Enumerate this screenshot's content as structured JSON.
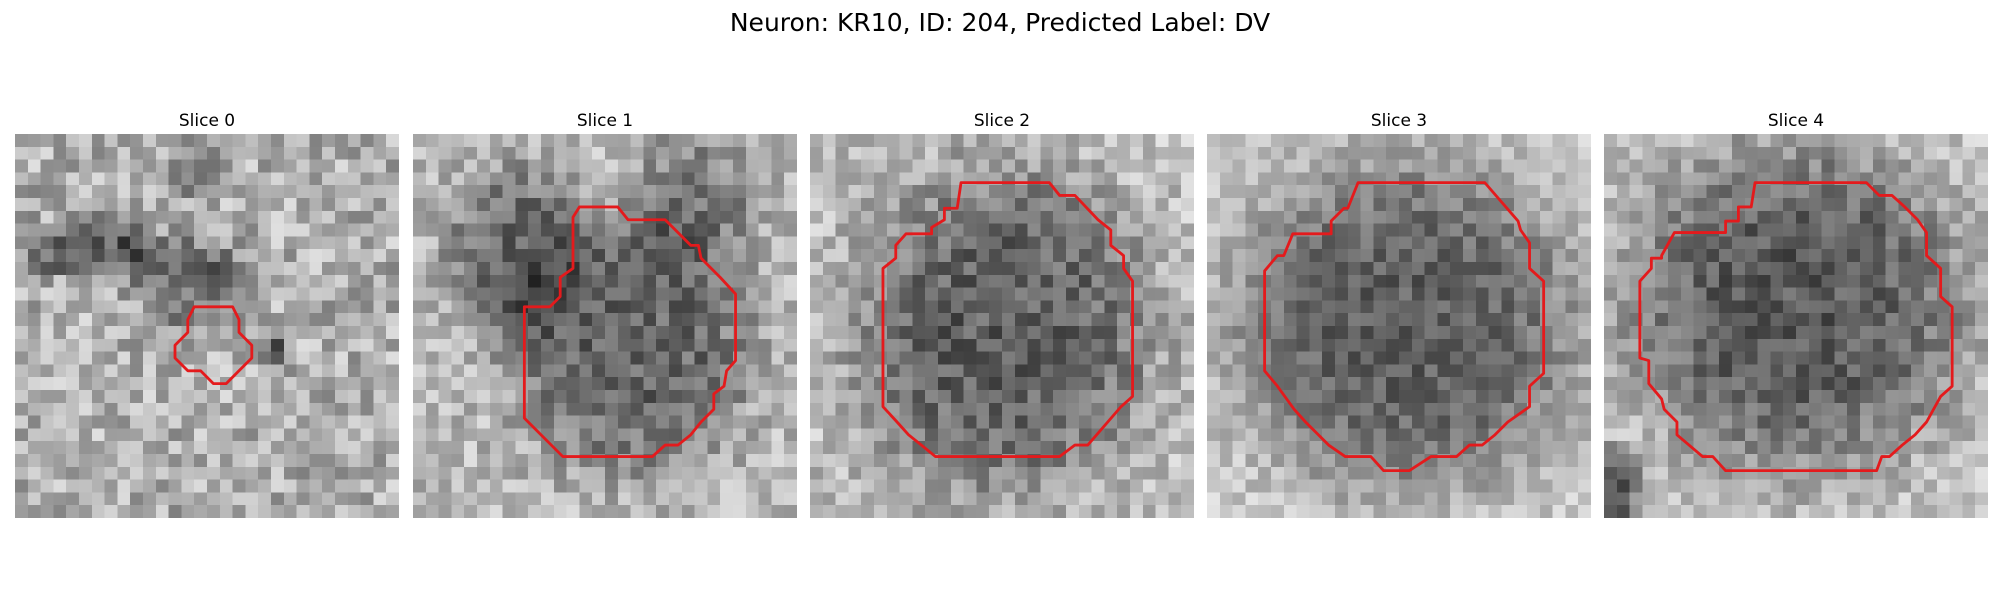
{
  "figure": {
    "title": "Neuron: KR10, ID: 204, Predicted Label: DV"
  },
  "grid_size": 30,
  "contour_color": "#e41a1c",
  "panels": [
    {
      "title": "Slice 0",
      "blobs": [
        {
          "cx": 6.0,
          "cy": 9.0,
          "rx": 5.0,
          "ry": 2.0,
          "depth": 90
        },
        {
          "cx": 14.0,
          "cy": 11.5,
          "rx": 4.0,
          "ry": 3.0,
          "depth": 70
        },
        {
          "cx": 20.0,
          "cy": 17.0,
          "rx": 1.5,
          "ry": 1.2,
          "depth": 80
        },
        {
          "cx": 14.0,
          "cy": 2.5,
          "rx": 1.5,
          "ry": 2.5,
          "depth": 50
        }
      ],
      "base": 175,
      "noise": 60,
      "seed": 11,
      "contour": [
        [
          14,
          13.5
        ],
        [
          17,
          13.5
        ],
        [
          17.5,
          14.5
        ],
        [
          17.5,
          15.5
        ],
        [
          18.5,
          16.5
        ],
        [
          18.5,
          17.5
        ],
        [
          17.5,
          18.5
        ],
        [
          16.5,
          19.5
        ],
        [
          15.5,
          19.5
        ],
        [
          14.5,
          18.5
        ],
        [
          13.5,
          18.5
        ],
        [
          12.5,
          17.5
        ],
        [
          12.5,
          16.5
        ],
        [
          13.5,
          15.5
        ],
        [
          13.5,
          14.5
        ]
      ]
    },
    {
      "title": "Slice 1",
      "blobs": [
        {
          "cx": 17.0,
          "cy": 16.5,
          "rx": 8.5,
          "ry": 9.0,
          "depth": 85
        },
        {
          "cx": 8.0,
          "cy": 9.0,
          "rx": 5.0,
          "ry": 6.0,
          "depth": 75
        },
        {
          "cx": 22.0,
          "cy": 5.0,
          "rx": 4.5,
          "ry": 5.0,
          "depth": 55
        }
      ],
      "base": 185,
      "noise": 50,
      "seed": 23,
      "contour": [
        [
          13,
          5.7
        ],
        [
          16,
          5.7
        ],
        [
          16.8,
          6.7
        ],
        [
          19.7,
          6.7
        ],
        [
          21.7,
          8.7
        ],
        [
          22.3,
          8.7
        ],
        [
          22.5,
          9.7
        ],
        [
          24,
          11.2
        ],
        [
          25.2,
          12.5
        ],
        [
          25.2,
          17.7
        ],
        [
          24.5,
          18.5
        ],
        [
          24.3,
          19.7
        ],
        [
          23.5,
          20.3
        ],
        [
          23.5,
          21.5
        ],
        [
          22.5,
          22.5
        ],
        [
          21.7,
          23.5
        ],
        [
          20.7,
          24.3
        ],
        [
          19.7,
          24.3
        ],
        [
          18.7,
          25.2
        ],
        [
          11.7,
          25.2
        ],
        [
          9,
          22.5
        ],
        [
          8.7,
          22.2
        ],
        [
          8.7,
          13.5
        ],
        [
          10.7,
          13.5
        ],
        [
          11.5,
          12.7
        ],
        [
          11.5,
          11.2
        ],
        [
          12.5,
          10.5
        ],
        [
          12.5,
          6.5
        ]
      ]
    },
    {
      "title": "Slice 2",
      "blobs": [
        {
          "cx": 15.0,
          "cy": 15.5,
          "rx": 10.5,
          "ry": 11.5,
          "depth": 95
        }
      ],
      "base": 190,
      "noise": 50,
      "seed": 37,
      "contour": [
        [
          11.8,
          3.8
        ],
        [
          18.7,
          3.8
        ],
        [
          19.5,
          4.8
        ],
        [
          20.7,
          4.8
        ],
        [
          22.5,
          6.7
        ],
        [
          23.5,
          7.5
        ],
        [
          23.5,
          8.7
        ],
        [
          24.5,
          9.5
        ],
        [
          24.5,
          10.5
        ],
        [
          25.2,
          11.5
        ],
        [
          25.2,
          20.5
        ],
        [
          24.3,
          21.3
        ],
        [
          21.7,
          24.3
        ],
        [
          20.7,
          24.3
        ],
        [
          19.5,
          25.2
        ],
        [
          9.8,
          25.2
        ],
        [
          8.7,
          24.3
        ],
        [
          7.7,
          23.5
        ],
        [
          6.8,
          22.5
        ],
        [
          5.7,
          21.3
        ],
        [
          5.7,
          10.5
        ],
        [
          6.7,
          9.7
        ],
        [
          6.7,
          8.7
        ],
        [
          7.5,
          7.8
        ],
        [
          9.5,
          7.8
        ],
        [
          9.5,
          7.3
        ],
        [
          10.5,
          6.7
        ],
        [
          10.5,
          5.8
        ],
        [
          11.5,
          5.8
        ]
      ]
    },
    {
      "title": "Slice 3",
      "blobs": [
        {
          "cx": 15.5,
          "cy": 15.0,
          "rx": 12.5,
          "ry": 12.0,
          "depth": 110
        }
      ],
      "base": 205,
      "noise": 40,
      "seed": 53,
      "contour": [
        [
          11.8,
          3.8
        ],
        [
          21.7,
          3.8
        ],
        [
          24.3,
          6.8
        ],
        [
          24.5,
          7.5
        ],
        [
          25.2,
          8.5
        ],
        [
          25.2,
          10.5
        ],
        [
          26.3,
          11.5
        ],
        [
          26.3,
          18.7
        ],
        [
          25.2,
          19.7
        ],
        [
          25.2,
          21.3
        ],
        [
          23.5,
          22.5
        ],
        [
          22.5,
          23.5
        ],
        [
          21.5,
          24.3
        ],
        [
          20.5,
          24.3
        ],
        [
          19.5,
          25.2
        ],
        [
          17.5,
          25.2
        ],
        [
          15.8,
          26.3
        ],
        [
          13.8,
          26.3
        ],
        [
          12.8,
          25.2
        ],
        [
          10.8,
          25.2
        ],
        [
          9.5,
          24.3
        ],
        [
          7.7,
          22.5
        ],
        [
          6.8,
          21.5
        ],
        [
          5.5,
          19.7
        ],
        [
          4.5,
          18.5
        ],
        [
          4.5,
          10.7
        ],
        [
          5.5,
          9.5
        ],
        [
          6,
          9.5
        ],
        [
          6.7,
          7.8
        ],
        [
          9.7,
          7.8
        ],
        [
          9.7,
          6.8
        ],
        [
          10.7,
          5.8
        ],
        [
          11,
          5.8
        ]
      ]
    },
    {
      "title": "Slice 4",
      "blobs": [
        {
          "cx": 15.0,
          "cy": 13.5,
          "rx": 12.0,
          "ry": 11.5,
          "depth": 105
        },
        {
          "cx": 0.5,
          "cy": 28.0,
          "rx": 2.0,
          "ry": 3.0,
          "depth": 120
        }
      ],
      "base": 195,
      "noise": 45,
      "seed": 71,
      "contour": [
        [
          11.8,
          3.8
        ],
        [
          20.5,
          3.8
        ],
        [
          21.5,
          4.8
        ],
        [
          22.5,
          4.8
        ],
        [
          23.5,
          5.7
        ],
        [
          24.5,
          6.7
        ],
        [
          25.2,
          7.7
        ],
        [
          25.2,
          9.5
        ],
        [
          26.3,
          10.5
        ],
        [
          26.3,
          12.7
        ],
        [
          27.2,
          13.5
        ],
        [
          27.2,
          19.7
        ],
        [
          26.3,
          20.5
        ],
        [
          25.2,
          22.5
        ],
        [
          24.3,
          23.5
        ],
        [
          23.3,
          24.3
        ],
        [
          22.3,
          25.2
        ],
        [
          21.7,
          25.2
        ],
        [
          21.3,
          26.3
        ],
        [
          9.5,
          26.3
        ],
        [
          8.5,
          25.2
        ],
        [
          7.7,
          25.2
        ],
        [
          5.7,
          23.5
        ],
        [
          5.7,
          22.5
        ],
        [
          4.7,
          21.5
        ],
        [
          4.5,
          20.7
        ],
        [
          3.5,
          19.5
        ],
        [
          3.5,
          17.7
        ],
        [
          2.8,
          17.5
        ],
        [
          2.8,
          11.5
        ],
        [
          3.7,
          10.5
        ],
        [
          3.7,
          9.7
        ],
        [
          4.5,
          9.7
        ],
        [
          4.5,
          9.5
        ],
        [
          5.5,
          7.7
        ],
        [
          9.5,
          7.7
        ],
        [
          9.5,
          6.8
        ],
        [
          10.5,
          6.8
        ],
        [
          10.5,
          5.7
        ],
        [
          11.5,
          5.7
        ]
      ]
    }
  ]
}
